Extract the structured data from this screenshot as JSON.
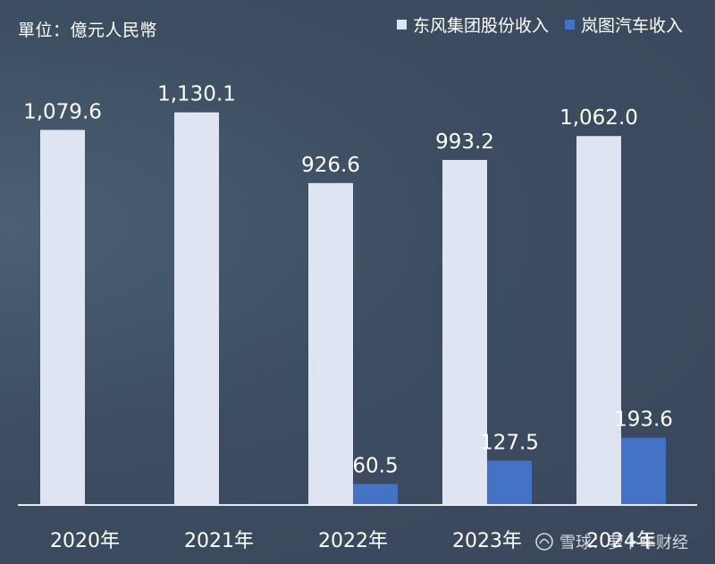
{
  "unit_label": "單位：億元人民幣",
  "watermark": {
    "text": "雪球：萝卜车财经"
  },
  "colors": {
    "dongfeng": "#dfe4f3",
    "voyah": "#4472c4",
    "baseline": "#e6e9f0"
  },
  "chart_data": {
    "type": "bar",
    "categories": [
      "2020年",
      "2021年",
      "2022年",
      "2023年",
      "2024年"
    ],
    "series": [
      {
        "name": "东风集团股份收入",
        "values": [
          1079.6,
          1130.1,
          926.6,
          993.2,
          1062.0
        ],
        "labels": [
          "1,079.6",
          "1,130.1",
          "926.6",
          "993.2",
          "1,062.0"
        ]
      },
      {
        "name": "岚图汽车收入",
        "values": [
          null,
          null,
          60.5,
          127.5,
          193.6
        ],
        "labels": [
          "",
          "",
          "60.5",
          "127.5",
          "193.6"
        ]
      }
    ],
    "ylim": [
      0,
      1200
    ],
    "grid": false,
    "legend": "top-right"
  }
}
